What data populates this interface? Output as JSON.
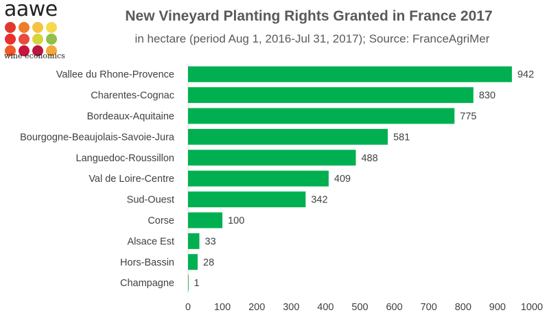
{
  "logo": {
    "name": "aawe",
    "tagline": "wine economics",
    "dot_colors": [
      "#e03a2f",
      "#ef7d28",
      "#f5c242",
      "#f7d84a",
      "#e8302c",
      "#e64b3c",
      "#d4d63a",
      "#8fc04a",
      "#f05a28",
      "#c8153a",
      "#b8173f",
      "#f2a93b"
    ]
  },
  "chart_data": {
    "type": "bar",
    "orientation": "horizontal",
    "title": "New Vineyard Planting Rights Granted in France 2017",
    "subtitle": "in hectare (period Aug 1, 2016-Jul 31, 2017); Source: FranceAgriMer",
    "categories": [
      "Vallee du Rhone-Provence",
      "Charentes-Cognac",
      "Bordeaux-Aquitaine",
      "Bourgogne-Beaujolais-Savoie-Jura",
      "Languedoc-Roussillon",
      "Val de Loire-Centre",
      "Sud-Ouest",
      "Corse",
      "Alsace Est",
      "Hors-Bassin",
      "Champagne"
    ],
    "values": [
      942,
      830,
      775,
      581,
      488,
      409,
      342,
      100,
      33,
      28,
      1
    ],
    "xlim": [
      0,
      1000
    ],
    "xticks": [
      0,
      100,
      200,
      300,
      400,
      500,
      600,
      700,
      800,
      900,
      1000
    ],
    "grid": false,
    "bar_color": "#00b050",
    "data_labels": true
  }
}
